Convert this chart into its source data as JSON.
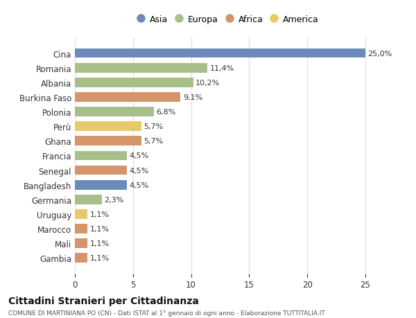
{
  "categories": [
    "Cina",
    "Romania",
    "Albania",
    "Burkina Faso",
    "Polonia",
    "Perù",
    "Ghana",
    "Francia",
    "Senegal",
    "Bangladesh",
    "Germania",
    "Uruguay",
    "Marocco",
    "Mali",
    "Gambia"
  ],
  "values": [
    25.0,
    11.4,
    10.2,
    9.1,
    6.8,
    5.7,
    5.7,
    4.5,
    4.5,
    4.5,
    2.3,
    1.1,
    1.1,
    1.1,
    1.1
  ],
  "labels": [
    "25,0%",
    "11,4%",
    "10,2%",
    "9,1%",
    "6,8%",
    "5,7%",
    "5,7%",
    "4,5%",
    "4,5%",
    "4,5%",
    "2,3%",
    "1,1%",
    "1,1%",
    "1,1%",
    "1,1%"
  ],
  "colors": [
    "#6b8cba",
    "#a8bf8a",
    "#a8bf8a",
    "#d4956a",
    "#a8bf8a",
    "#e8c96a",
    "#d4956a",
    "#a8bf8a",
    "#d4956a",
    "#6b8cba",
    "#a8bf8a",
    "#e8c96a",
    "#d4956a",
    "#d4956a",
    "#d4956a"
  ],
  "legend_labels": [
    "Asia",
    "Europa",
    "Africa",
    "America"
  ],
  "legend_colors": [
    "#6b8cba",
    "#a8bf8a",
    "#d4956a",
    "#e8c96a"
  ],
  "title": "Cittadini Stranieri per Cittadinanza",
  "subtitle": "COMUNE DI MARTINIANA PO (CN) - Dati ISTAT al 1° gennaio di ogni anno - Elaborazione TUTTITALIA.IT",
  "xlim": [
    0,
    26.5
  ],
  "xticks": [
    0,
    5,
    10,
    15,
    20,
    25
  ],
  "background_color": "#ffffff",
  "grid_color": "#dddddd",
  "bar_height": 0.65
}
